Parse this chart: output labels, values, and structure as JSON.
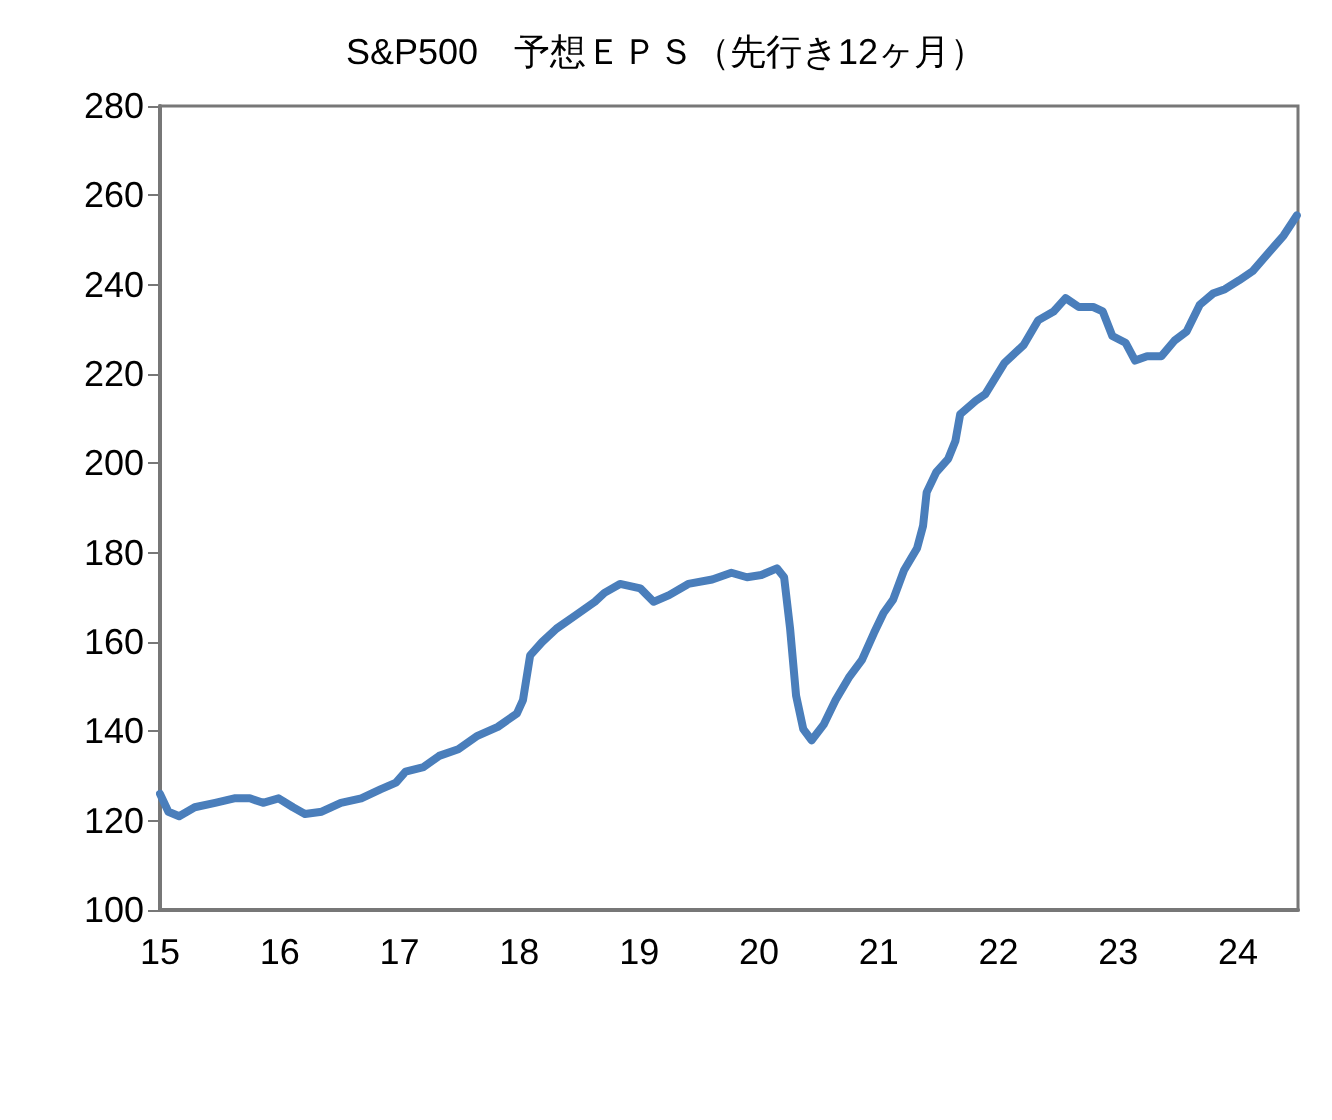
{
  "chart_data": {
    "type": "line",
    "title": "S&P500　予想ＥＰＳ（先行き12ヶ月）",
    "xlim": [
      15,
      24.5
    ],
    "xticks": [
      15,
      16,
      17,
      18,
      19,
      20,
      21,
      22,
      23,
      24
    ],
    "ylim": [
      100,
      280
    ],
    "yticks": [
      100,
      120,
      140,
      160,
      180,
      200,
      220,
      240,
      260,
      280
    ],
    "grid": false,
    "marker": "none",
    "line_style": "solid",
    "series": [
      {
        "color": "#4a7ebb",
        "x": [
          15.0,
          15.07,
          15.16,
          15.29,
          15.46,
          15.62,
          15.75,
          15.86,
          15.99,
          16.11,
          16.21,
          16.35,
          16.51,
          16.68,
          16.84,
          16.97,
          17.05,
          17.2,
          17.33,
          17.49,
          17.65,
          17.82,
          17.98,
          18.03,
          18.09,
          18.19,
          18.31,
          18.47,
          18.63,
          18.71,
          18.84,
          19.01,
          19.12,
          19.25,
          19.41,
          19.61,
          19.77,
          19.9,
          20.02,
          20.15,
          20.21,
          20.26,
          20.31,
          20.37,
          20.44,
          20.54,
          20.64,
          20.75,
          20.86,
          20.96,
          21.04,
          21.12,
          21.21,
          21.32,
          21.37,
          21.4,
          21.48,
          21.58,
          21.64,
          21.68,
          21.81,
          21.89,
          22.05,
          22.21,
          22.33,
          22.46,
          22.56,
          22.67,
          22.79,
          22.87,
          22.95,
          23.06,
          23.14,
          23.24,
          23.36,
          23.47,
          23.57,
          23.68,
          23.79,
          23.89,
          24.01,
          24.12,
          24.25,
          24.38,
          24.49
        ],
        "values": [
          126,
          122,
          121,
          123,
          124,
          125,
          125,
          124,
          125,
          123,
          121.5,
          122,
          124,
          125,
          127,
          128.5,
          131,
          132,
          134.5,
          136,
          139,
          141,
          144,
          147,
          157,
          160,
          163,
          166,
          169,
          171,
          173,
          172,
          169,
          170.5,
          173,
          174,
          175.5,
          174.5,
          175,
          176.5,
          174.5,
          163,
          148,
          140.5,
          138,
          141.5,
          147,
          152,
          156,
          162,
          166.5,
          169.5,
          176,
          181,
          186,
          193.5,
          198,
          201,
          205,
          211,
          214,
          215.5,
          222.5,
          226.5,
          232,
          234,
          237,
          235,
          235,
          234,
          228.5,
          227,
          223,
          224,
          224,
          227.5,
          229.5,
          235.5,
          238,
          239,
          241,
          243,
          247,
          251,
          255.5
        ]
      }
    ]
  }
}
